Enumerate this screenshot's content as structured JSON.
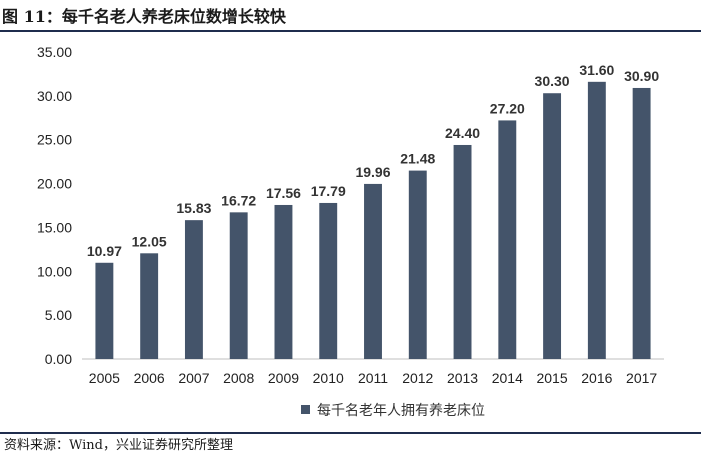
{
  "title": "图 11：每千名老人养老床位数增长较快",
  "source": "资料来源：Wind，兴业证券研究所整理",
  "chart_data": {
    "type": "bar",
    "categories": [
      "2005",
      "2006",
      "2007",
      "2008",
      "2009",
      "2010",
      "2011",
      "2012",
      "2013",
      "2014",
      "2015",
      "2016",
      "2017"
    ],
    "series": [
      {
        "name": "每千名老年人拥有养老床位",
        "values": [
          10.97,
          12.05,
          15.83,
          16.72,
          17.56,
          17.79,
          19.96,
          21.48,
          24.4,
          27.2,
          30.3,
          31.6,
          30.9
        ],
        "labels": [
          "10.97",
          "12.05",
          "15.83",
          "16.72",
          "17.56",
          "17.79",
          "19.96",
          "21.48",
          "24.40",
          "27.20",
          "30.30",
          "31.60",
          "30.90"
        ],
        "color": "#44546a"
      }
    ],
    "yticks": [
      "0.00",
      "5.00",
      "10.00",
      "15.00",
      "20.00",
      "25.00",
      "30.00",
      "35.00"
    ],
    "ylim": [
      0,
      35
    ],
    "grid": false,
    "legend_position": "bottom-center"
  }
}
